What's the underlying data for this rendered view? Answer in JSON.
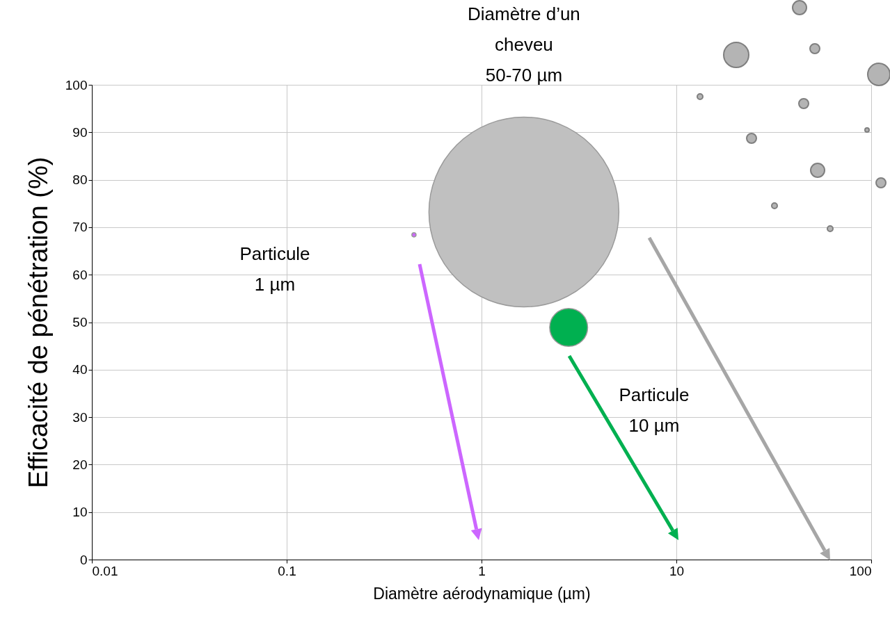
{
  "chart_data": {
    "type": "bubble",
    "xlabel": "Diamètre aérodynamique (µm)",
    "ylabel": "Efficacité de pénétration (%)",
    "x": [
      0.45,
      1.65,
      2.8
    ],
    "values": [
      68.4,
      73.2,
      48.9
    ],
    "sizes": [
      0.0005,
      1,
      0.04
    ],
    "colors": [
      "#cc66ff",
      "#c0c0c0",
      "#00b050"
    ],
    "log": "x",
    "xlim": [
      0.01,
      100
    ],
    "xticks": [
      0.01,
      0.1,
      1,
      10,
      100
    ],
    "ylim": [
      0,
      100
    ],
    "yticks": [
      0,
      10,
      20,
      30,
      40,
      50,
      60,
      70,
      80,
      90,
      100
    ],
    "grid": true,
    "annotations": [
      "Diamètre d’un\ncheveu\n50-70 µm",
      "Particule\n1 µm",
      "Particule\n10 µm"
    ]
  }
}
